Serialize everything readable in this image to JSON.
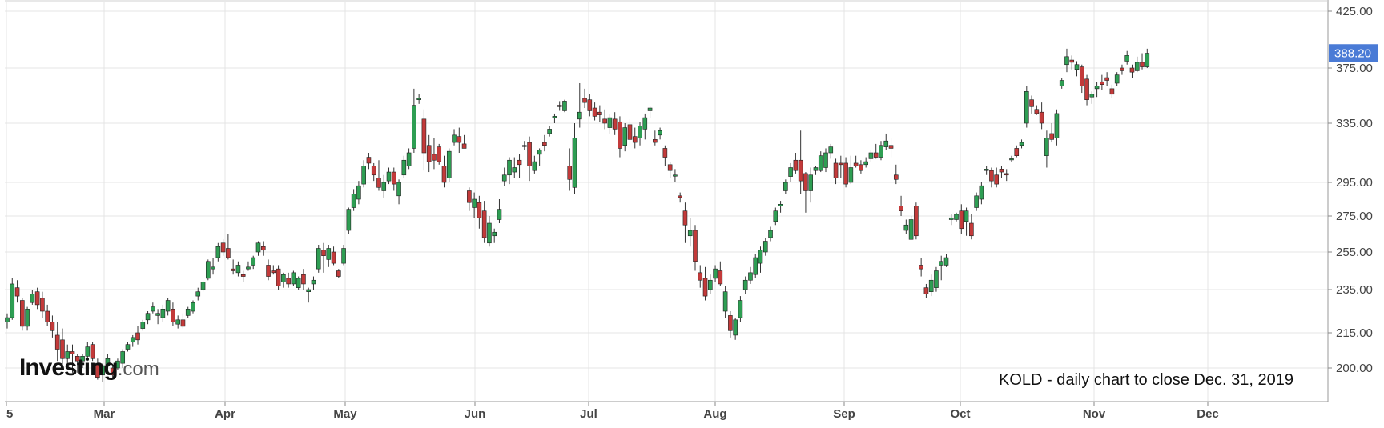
{
  "caption": "KOLD - daily chart to close Dec. 31, 2019",
  "watermark": {
    "brand": "Investing",
    "suffix": ".com"
  },
  "price_badge": {
    "text": "388.20",
    "color": "#4a7bd6"
  },
  "colors": {
    "up": "#2e9e53",
    "down": "#c33a3a",
    "wick": "#333333",
    "grid": "#e4e4e4"
  },
  "chart_data": {
    "type": "candlestick",
    "title": "",
    "ylim": [
      188,
      425
    ],
    "y_ticks": [
      "425.00",
      "375.00",
      "335.00",
      "295.00",
      "275.00",
      "255.00",
      "235.00",
      "215.00",
      "200.00"
    ],
    "x_labels": [
      "5",
      "Mar",
      "Apr",
      "May",
      "Jun",
      "Jul",
      "Aug",
      "Sep",
      "Oct",
      "Nov",
      "Dec"
    ],
    "last_price": 388.2,
    "candles": [
      [
        220,
        224,
        217,
        222
      ],
      [
        222,
        241,
        221,
        238
      ],
      [
        236,
        240,
        229,
        232
      ],
      [
        230,
        231,
        216,
        218
      ],
      [
        218,
        227,
        216,
        226
      ],
      [
        229,
        235,
        228,
        233
      ],
      [
        234,
        236,
        226,
        228
      ],
      [
        231,
        234,
        222,
        225
      ],
      [
        225,
        228,
        218,
        220
      ],
      [
        220,
        223,
        213,
        216
      ],
      [
        214,
        220,
        203,
        208
      ],
      [
        212,
        217,
        201,
        204
      ],
      [
        204,
        210,
        199,
        207
      ],
      [
        207,
        210,
        198,
        206
      ],
      [
        205,
        206,
        198,
        203
      ],
      [
        203,
        206,
        200,
        205
      ],
      [
        205,
        211,
        203,
        209
      ],
      [
        210,
        211,
        203,
        204
      ],
      [
        202,
        204,
        195,
        196
      ],
      [
        197,
        202,
        194,
        201
      ],
      [
        201,
        206,
        199,
        204
      ],
      [
        200,
        201,
        196,
        197
      ],
      [
        200,
        204,
        199,
        203
      ],
      [
        202,
        208,
        200,
        207
      ],
      [
        208,
        211,
        207,
        210
      ],
      [
        211,
        214,
        209,
        213
      ],
      [
        215,
        218,
        210,
        212
      ],
      [
        217,
        221,
        216,
        220
      ],
      [
        221,
        225,
        219,
        224
      ],
      [
        225,
        229,
        224,
        227
      ],
      [
        223,
        226,
        219,
        224
      ],
      [
        222,
        228,
        220,
        226
      ],
      [
        225,
        231,
        223,
        230
      ],
      [
        226,
        229,
        218,
        220
      ],
      [
        219,
        223,
        217,
        221
      ],
      [
        221,
        224,
        217,
        218
      ],
      [
        223,
        227,
        222,
        226
      ],
      [
        225,
        230,
        224,
        229
      ],
      [
        232,
        236,
        230,
        234
      ],
      [
        235,
        240,
        234,
        239
      ],
      [
        241,
        251,
        240,
        250
      ],
      [
        246,
        252,
        243,
        247
      ],
      [
        252,
        260,
        250,
        258
      ],
      [
        260,
        262,
        253,
        255
      ],
      [
        257,
        265,
        251,
        252
      ],
      [
        246,
        251,
        243,
        245
      ],
      [
        244,
        250,
        242,
        248
      ],
      [
        243,
        245,
        239,
        242
      ],
      [
        246,
        250,
        245,
        247
      ],
      [
        248,
        253,
        246,
        252
      ],
      [
        255,
        261,
        253,
        260
      ],
      [
        258,
        261,
        253,
        256
      ],
      [
        248,
        251,
        240,
        242
      ],
      [
        245,
        248,
        243,
        244
      ],
      [
        246,
        248,
        235,
        237
      ],
      [
        239,
        244,
        236,
        243
      ],
      [
        241,
        244,
        236,
        238
      ],
      [
        238,
        245,
        237,
        244
      ],
      [
        236,
        242,
        235,
        241
      ],
      [
        243,
        246,
        235,
        238
      ],
      [
        234,
        236,
        229,
        235
      ],
      [
        238,
        242,
        235,
        240
      ],
      [
        246,
        259,
        244,
        257
      ],
      [
        256,
        260,
        244,
        253
      ],
      [
        251,
        259,
        247,
        257
      ],
      [
        255,
        258,
        248,
        249
      ],
      [
        245,
        246,
        241,
        242
      ],
      [
        249,
        259,
        248,
        257
      ],
      [
        267,
        280,
        265,
        279
      ],
      [
        280,
        291,
        278,
        288
      ],
      [
        285,
        296,
        282,
        293
      ],
      [
        294,
        310,
        292,
        306
      ],
      [
        312,
        315,
        304,
        308
      ],
      [
        306,
        308,
        296,
        300
      ],
      [
        298,
        310,
        290,
        292
      ],
      [
        290,
        300,
        286,
        295
      ],
      [
        296,
        305,
        294,
        302
      ],
      [
        302,
        305,
        290,
        294
      ],
      [
        287,
        297,
        282,
        295
      ],
      [
        300,
        313,
        298,
        310
      ],
      [
        306,
        318,
        304,
        315
      ],
      [
        318,
        360,
        315,
        348
      ],
      [
        352,
        356,
        349,
        353
      ],
      [
        338,
        345,
        303,
        315
      ],
      [
        320,
        327,
        302,
        309
      ],
      [
        314,
        325,
        304,
        310
      ],
      [
        319,
        321,
        307,
        309
      ],
      [
        306,
        313,
        292,
        295
      ],
      [
        298,
        318,
        295,
        316
      ],
      [
        322,
        331,
        320,
        327
      ],
      [
        326,
        332,
        315,
        322
      ],
      [
        321,
        327,
        319,
        318
      ],
      [
        290,
        292,
        278,
        283
      ],
      [
        280,
        289,
        274,
        285
      ],
      [
        283,
        287,
        268,
        274
      ],
      [
        278,
        284,
        260,
        263
      ],
      [
        260,
        275,
        258,
        271
      ],
      [
        264,
        268,
        260,
        266
      ],
      [
        273,
        285,
        271,
        279
      ],
      [
        296,
        305,
        293,
        300
      ],
      [
        300,
        312,
        294,
        310
      ],
      [
        302,
        312,
        298,
        305
      ],
      [
        310,
        314,
        298,
        307
      ],
      [
        320,
        323,
        317,
        320
      ],
      [
        322,
        326,
        296,
        306
      ],
      [
        303,
        313,
        301,
        309
      ],
      [
        314,
        318,
        306,
        317
      ],
      [
        322,
        327,
        316,
        320
      ],
      [
        328,
        333,
        326,
        331
      ],
      [
        339,
        342,
        335,
        340
      ],
      [
        348,
        351,
        344,
        347
      ],
      [
        344,
        352,
        343,
        351
      ],
      [
        306,
        318,
        290,
        297
      ],
      [
        292,
        335,
        288,
        325
      ],
      [
        338,
        364,
        332,
        343
      ],
      [
        353,
        360,
        346,
        350
      ],
      [
        352,
        356,
        340,
        344
      ],
      [
        346,
        350,
        337,
        340
      ],
      [
        343,
        348,
        336,
        341
      ],
      [
        338,
        345,
        331,
        335
      ],
      [
        332,
        342,
        328,
        339
      ],
      [
        338,
        343,
        327,
        331
      ],
      [
        336,
        340,
        312,
        318
      ],
      [
        320,
        335,
        316,
        332
      ],
      [
        334,
        338,
        320,
        324
      ],
      [
        326,
        332,
        318,
        322
      ],
      [
        325,
        336,
        320,
        333
      ],
      [
        331,
        342,
        324,
        339
      ],
      [
        344,
        347,
        339,
        346
      ],
      [
        324,
        330,
        320,
        322
      ],
      [
        327,
        332,
        324,
        330
      ],
      [
        318,
        320,
        306,
        312
      ],
      [
        307,
        309,
        298,
        303
      ],
      [
        300,
        304,
        295,
        300
      ],
      [
        287,
        289,
        283,
        286
      ],
      [
        278,
        283,
        260,
        270
      ],
      [
        264,
        274,
        258,
        267
      ],
      [
        267,
        270,
        245,
        250
      ],
      [
        244,
        248,
        236,
        240
      ],
      [
        241,
        247,
        230,
        232
      ],
      [
        235,
        243,
        233,
        240
      ],
      [
        241,
        248,
        239,
        246
      ],
      [
        245,
        250,
        237,
        238
      ],
      [
        225,
        237,
        222,
        234
      ],
      [
        223,
        225,
        213,
        216
      ],
      [
        214,
        222,
        212,
        221
      ],
      [
        222,
        232,
        220,
        230
      ],
      [
        235,
        242,
        233,
        240
      ],
      [
        240,
        247,
        238,
        244
      ],
      [
        243,
        254,
        241,
        252
      ],
      [
        249,
        258,
        244,
        256
      ],
      [
        255,
        263,
        253,
        261
      ],
      [
        263,
        269,
        261,
        267
      ],
      [
        272,
        280,
        270,
        278
      ],
      [
        281,
        284,
        277,
        282
      ],
      [
        290,
        297,
        288,
        295
      ],
      [
        299,
        308,
        295,
        305
      ],
      [
        310,
        315,
        301,
        303
      ],
      [
        310,
        330,
        288,
        296
      ],
      [
        301,
        302,
        277,
        290
      ],
      [
        290,
        305,
        283,
        300
      ],
      [
        303,
        306,
        300,
        305
      ],
      [
        303,
        316,
        302,
        313
      ],
      [
        305,
        318,
        302,
        315
      ],
      [
        315,
        321,
        311,
        319
      ],
      [
        308,
        311,
        294,
        298
      ],
      [
        308,
        313,
        298,
        307
      ],
      [
        308,
        312,
        292,
        294
      ],
      [
        295,
        313,
        294,
        305
      ],
      [
        308,
        313,
        305,
        306
      ],
      [
        307,
        310,
        301,
        303
      ],
      [
        307,
        312,
        305,
        309
      ],
      [
        311,
        317,
        309,
        315
      ],
      [
        315,
        321,
        311,
        312
      ],
      [
        312,
        323,
        310,
        320
      ],
      [
        319,
        328,
        317,
        323
      ],
      [
        320,
        325,
        312,
        318
      ],
      [
        300,
        307,
        294,
        297
      ],
      [
        281,
        287,
        275,
        278
      ],
      [
        267,
        273,
        265,
        270
      ],
      [
        262,
        275,
        262,
        273
      ],
      [
        281,
        283,
        262,
        264
      ],
      [
        248,
        252,
        242,
        246
      ],
      [
        236,
        238,
        231,
        233
      ],
      [
        234,
        243,
        232,
        240
      ],
      [
        236,
        247,
        234,
        245
      ],
      [
        248,
        253,
        240,
        250
      ],
      [
        248,
        254,
        247,
        252
      ],
      [
        273,
        276,
        270,
        274
      ],
      [
        273,
        277,
        272,
        276
      ],
      [
        278,
        282,
        265,
        268
      ],
      [
        272,
        280,
        264,
        278
      ],
      [
        271,
        276,
        262,
        264
      ],
      [
        280,
        289,
        278,
        287
      ],
      [
        285,
        295,
        282,
        293
      ],
      [
        303,
        306,
        300,
        304
      ],
      [
        303,
        305,
        292,
        296
      ],
      [
        300,
        305,
        292,
        294
      ],
      [
        304,
        306,
        298,
        302
      ],
      [
        301,
        304,
        296,
        300
      ],
      [
        311,
        313,
        309,
        311
      ],
      [
        318,
        320,
        312,
        313
      ],
      [
        320,
        324,
        318,
        322
      ],
      [
        335,
        362,
        332,
        358
      ],
      [
        352,
        355,
        342,
        347
      ],
      [
        345,
        348,
        341,
        342
      ],
      [
        343,
        350,
        331,
        335
      ],
      [
        313,
        330,
        305,
        325
      ],
      [
        328,
        335,
        322,
        324
      ],
      [
        325,
        345,
        320,
        342
      ],
      [
        362,
        368,
        360,
        366
      ],
      [
        378,
        392,
        372,
        385
      ],
      [
        382,
        386,
        374,
        380
      ],
      [
        374,
        381,
        369,
        378
      ],
      [
        376,
        378,
        357,
        362
      ],
      [
        367,
        370,
        348,
        352
      ],
      [
        354,
        358,
        349,
        356
      ],
      [
        360,
        365,
        354,
        362
      ],
      [
        365,
        370,
        359,
        363
      ],
      [
        368,
        372,
        362,
        366
      ],
      [
        360,
        363,
        353,
        356
      ],
      [
        364,
        372,
        362,
        370
      ],
      [
        375,
        378,
        370,
        373
      ],
      [
        381,
        390,
        378,
        386
      ],
      [
        375,
        378,
        368,
        372
      ],
      [
        373,
        385,
        372,
        380
      ],
      [
        380,
        388,
        374,
        376
      ],
      [
        376,
        392,
        375,
        388
      ]
    ]
  }
}
